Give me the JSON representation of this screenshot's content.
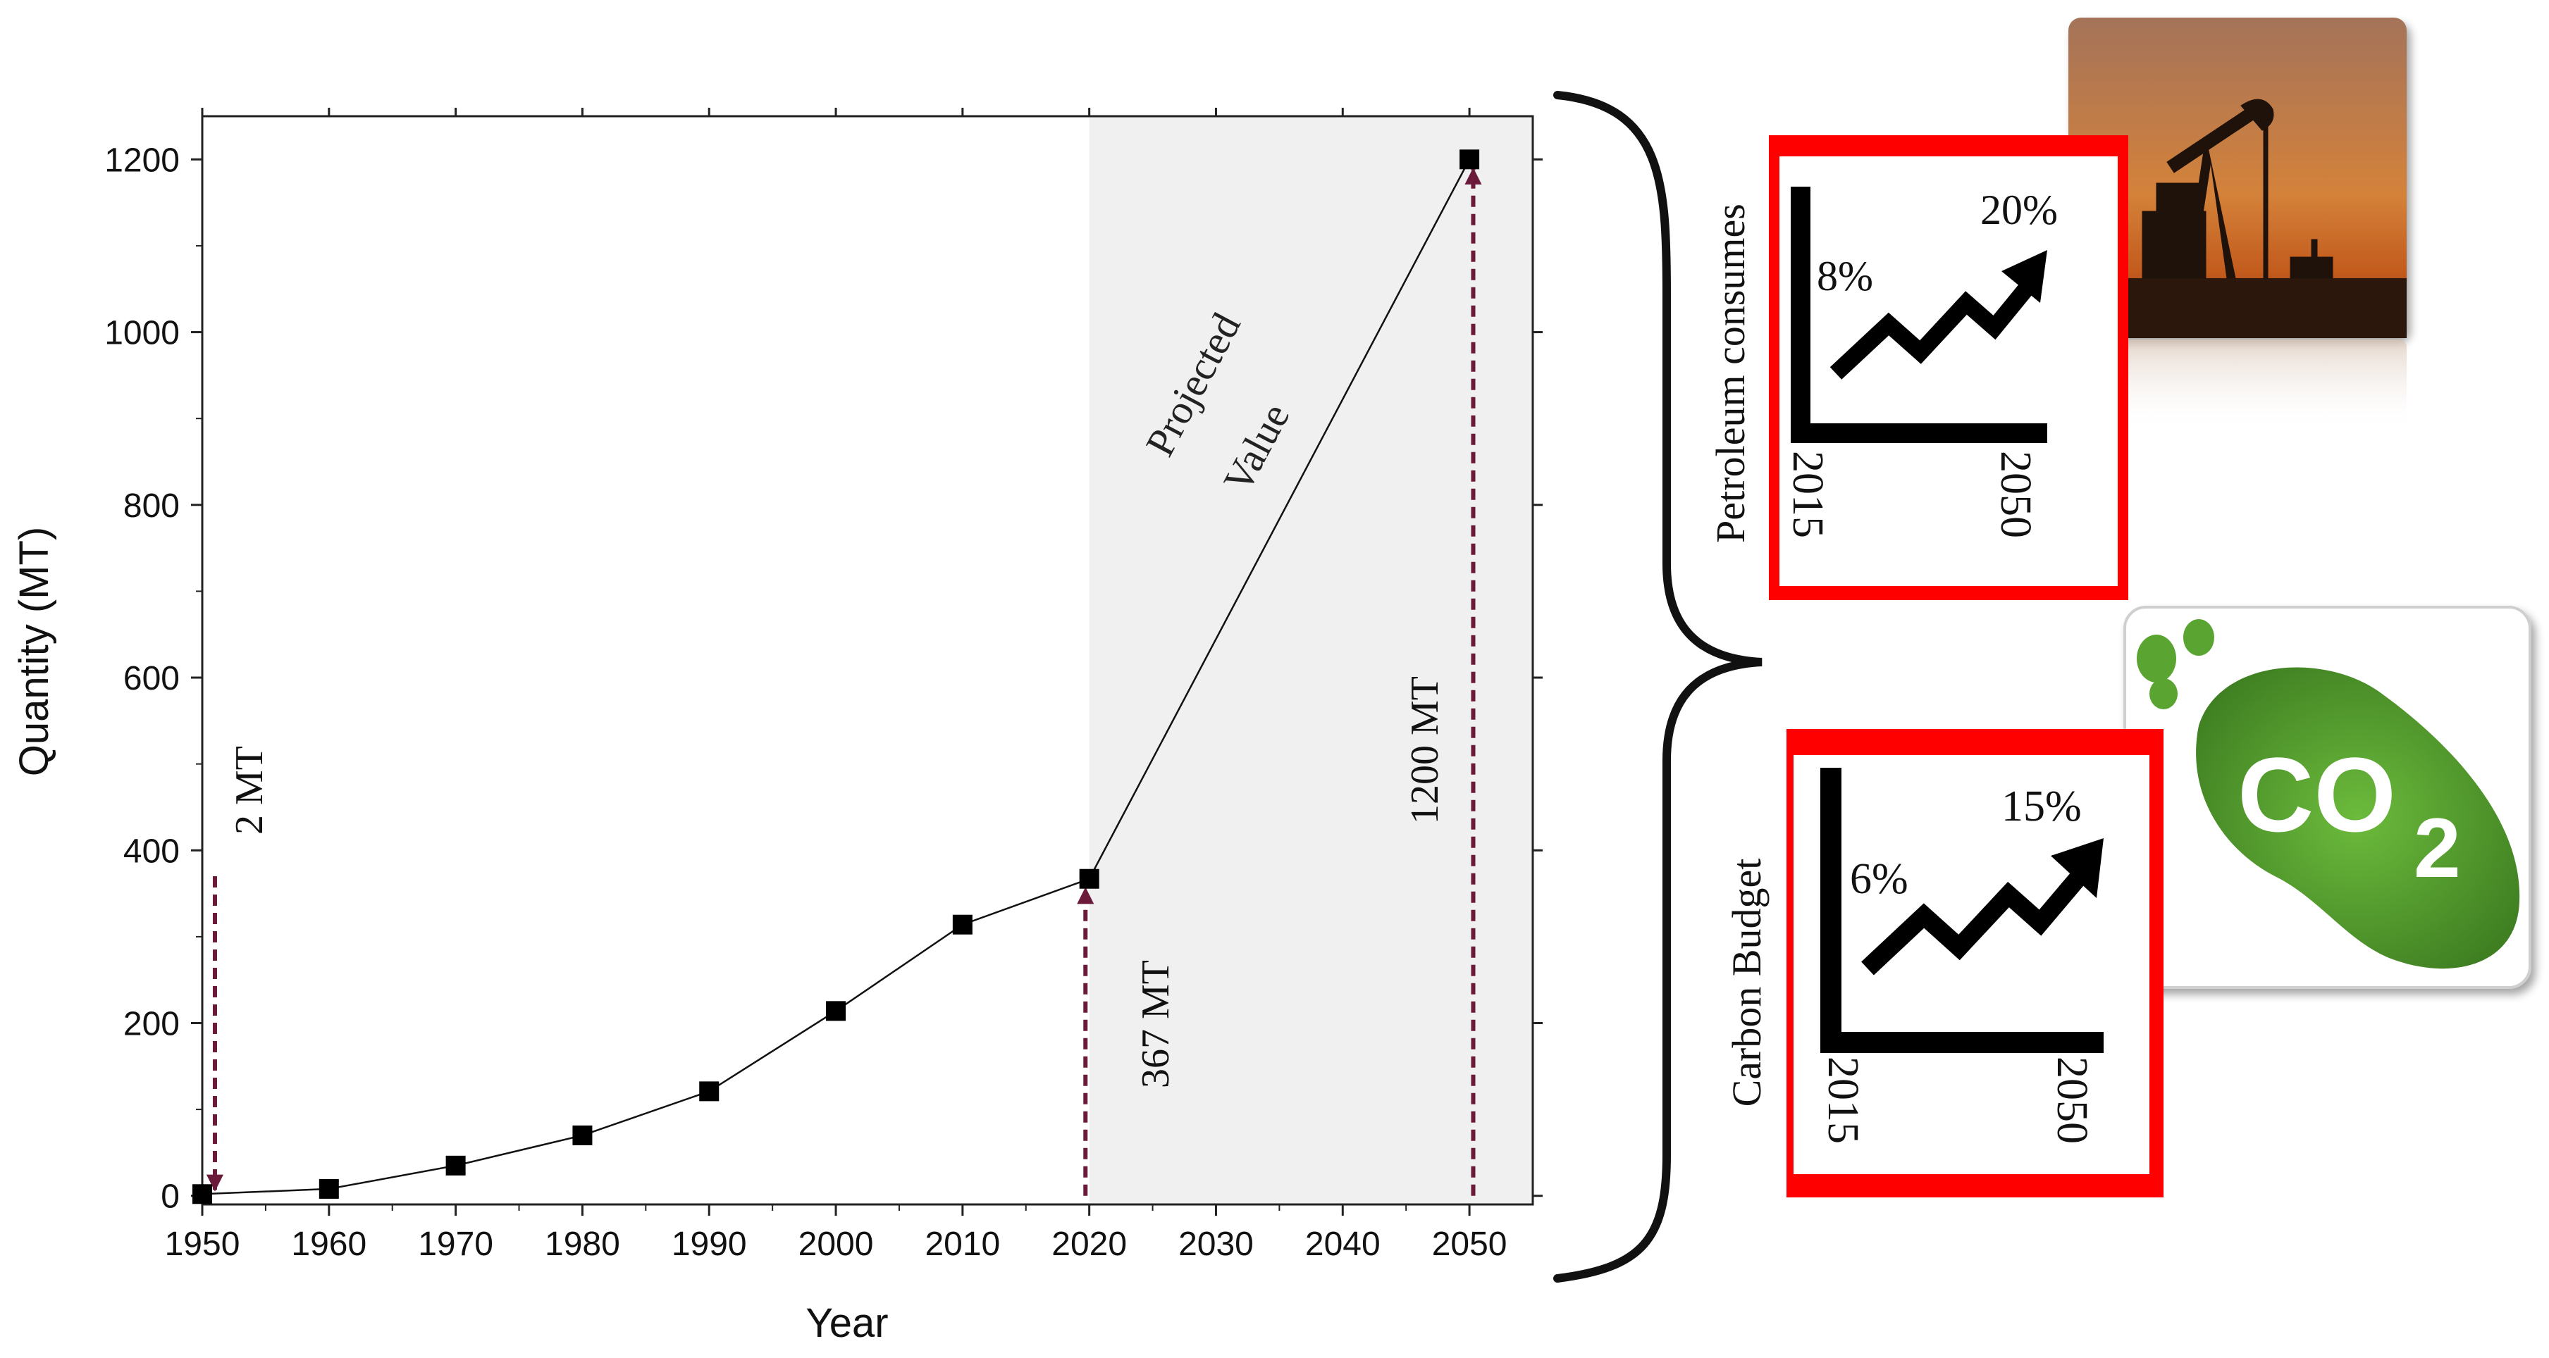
{
  "chart_data": {
    "type": "line",
    "xlabel": "Year",
    "ylabel": "Quantity (MT)",
    "xlim": [
      1950,
      2055
    ],
    "ylim": [
      -10,
      1250
    ],
    "xticks": [
      1950,
      1960,
      1970,
      1980,
      1990,
      2000,
      2010,
      2020,
      2030,
      2040,
      2050
    ],
    "yticks": [
      0,
      200,
      400,
      600,
      800,
      1000,
      1200
    ],
    "grid": false,
    "x": [
      1950,
      1960,
      1970,
      1980,
      1990,
      2000,
      2010,
      2020,
      2050
    ],
    "values": [
      2,
      8,
      35,
      70,
      121,
      214,
      314,
      367,
      1200
    ],
    "projected_region": [
      2020,
      2055
    ],
    "projected_label_line1": "Projected",
    "projected_label_line2": "Value",
    "annotations": [
      {
        "text": "2 MT",
        "x": 1951,
        "y_from": 370,
        "y_to": 2
      },
      {
        "text": "367 MT",
        "x": 2019.7,
        "y_from": 0,
        "y_to": 367
      },
      {
        "text": "1200 MT",
        "x": 2050.3,
        "y_from": 0,
        "y_to": 1200
      }
    ]
  },
  "panels": {
    "petroleum": {
      "label": "Petroleum consumes",
      "start_pct": "8%",
      "end_pct": "20%",
      "start_year": "2015",
      "end_year": "2050"
    },
    "carbon": {
      "label": "Carbon Budget",
      "start_pct": "6%",
      "end_pct": "15%",
      "start_year": "2015",
      "end_year": "2050"
    },
    "co2_badge": {
      "text": "CO",
      "subscript": "2"
    }
  },
  "colors": {
    "annotation": "#6b1a3a",
    "frame_red": "#ff0000",
    "projected_bg": "#f0f0f0",
    "grass": "#4f9a2c",
    "sunset": "#c26a2e"
  }
}
